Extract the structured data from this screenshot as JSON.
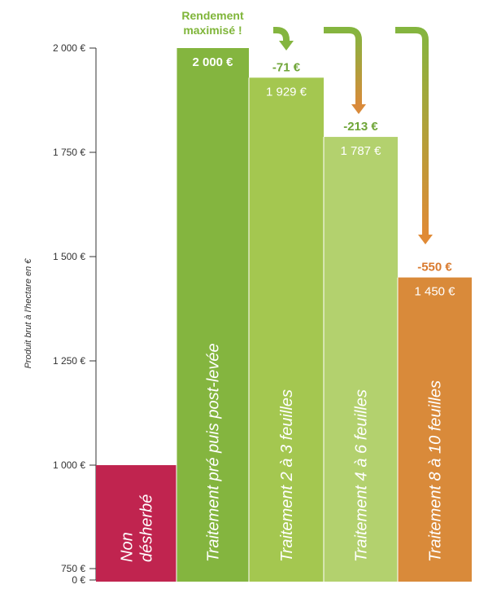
{
  "chart_data": {
    "type": "bar",
    "ylabel": "Produit brut à l'hectare en €",
    "y_ticks": [
      "0 €",
      "750 €",
      "1 000 €",
      "1 250 €",
      "1 500 €",
      "1 750 €",
      "2 000 €"
    ],
    "y_tick_values": [
      0,
      750,
      1000,
      1250,
      1500,
      1750,
      2000
    ],
    "axis_break": true,
    "ylim": [
      750,
      2000
    ],
    "categories": [
      {
        "label": [
          "Non",
          "désherbé"
        ],
        "value": 1000,
        "value_label": "",
        "delta": "",
        "color": "#c0244f"
      },
      {
        "label": [
          "Traitement pré puis post-levée"
        ],
        "value": 2000,
        "value_label": "2 000 €",
        "delta": "",
        "color": "#84b53f"
      },
      {
        "label": [
          "Traitement 2 à 3 feuilles"
        ],
        "value": 1929,
        "value_label": "1 929 €",
        "delta": "-71 €",
        "color": "#a4c750"
      },
      {
        "label": [
          "Traitement 4 à 6 feuilles"
        ],
        "value": 1787,
        "value_label": "1 787 €",
        "delta": "-213 €",
        "color": "#b3d16e"
      },
      {
        "label": [
          "Traitement 8 à 10 feuilles"
        ],
        "value": 1450,
        "value_label": "1 450 €",
        "delta": "-550 €",
        "color": "#d98a3a"
      }
    ],
    "annotation": [
      "Rendement",
      "maximisé !"
    ],
    "colors": {
      "annotation": "#7fb539",
      "delta_green": "#6fa538",
      "delta_orange": "#d97a2e",
      "arrow_green": "#84b53f",
      "arrow_orange": "#e08a35",
      "axis": "#333333"
    },
    "grid": false
  }
}
